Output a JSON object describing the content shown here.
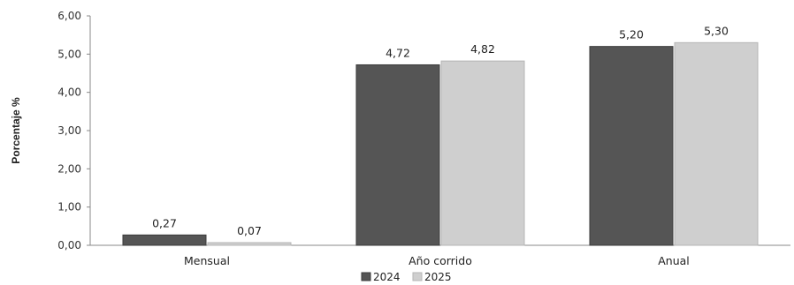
{
  "chart_data": {
    "type": "bar",
    "categories": [
      "Mensual",
      "Año corrido",
      "Anual"
    ],
    "series": [
      {
        "name": "2024",
        "values": [
          0.27,
          4.72,
          5.2
        ],
        "labels": [
          "0,27",
          "4,72",
          "5,20"
        ],
        "color": "#555555"
      },
      {
        "name": "2025",
        "values": [
          0.07,
          4.82,
          5.3
        ],
        "labels": [
          "0,07",
          "4,82",
          "5,30"
        ],
        "color": "#cfcfcf"
      }
    ],
    "ylabel": "Porcentaje %",
    "xlabel": "",
    "title": "",
    "ylim": [
      0,
      6
    ],
    "yticks": [
      0,
      1,
      2,
      3,
      4,
      5,
      6
    ],
    "ytick_labels": [
      "0,00",
      "1,00",
      "2,00",
      "3,00",
      "4,00",
      "5,00",
      "6,00"
    ],
    "grid": false,
    "legend_position": "bottom-center"
  }
}
